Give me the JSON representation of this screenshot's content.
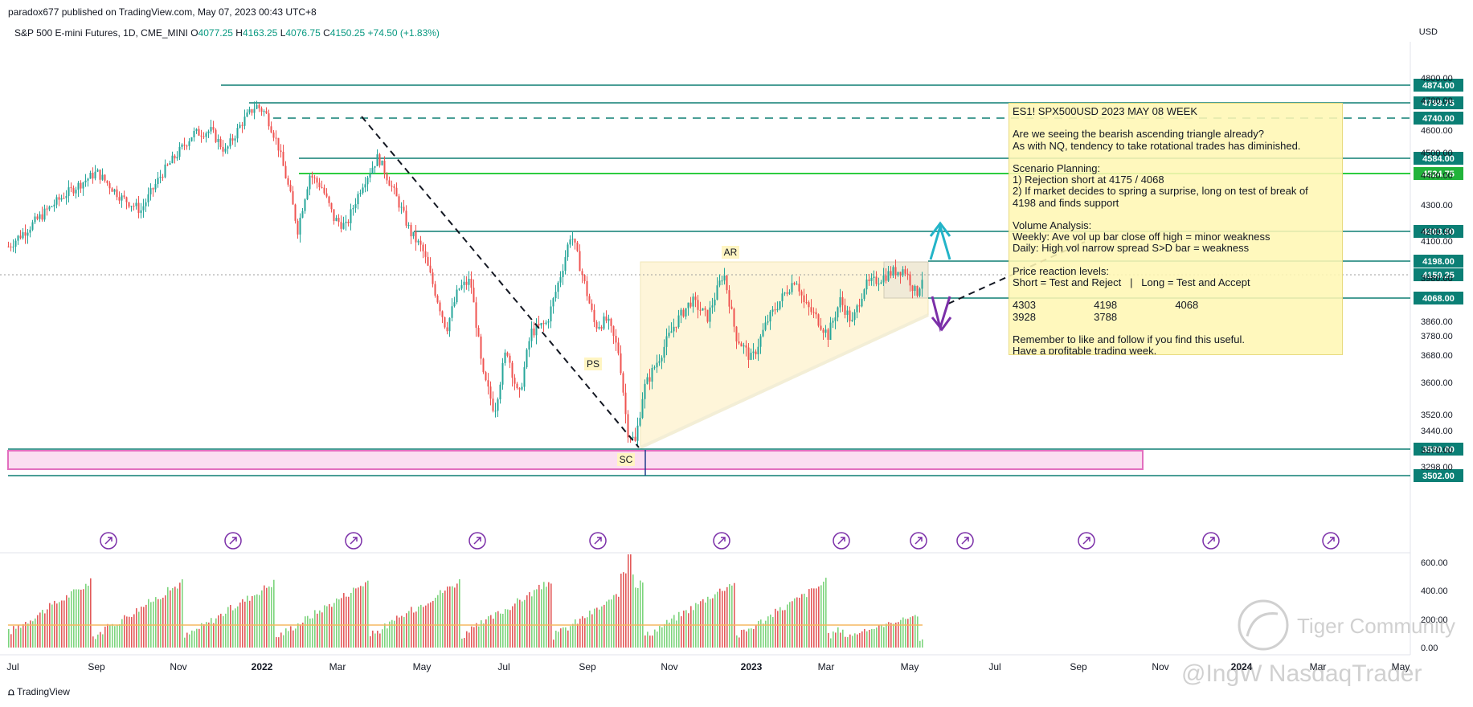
{
  "publisher": "paradox677 published on TradingView.com, May 07, 2023 00:43 UTC+8",
  "legend": {
    "symbol": "S&P 500 E-mini Futures, 1D, CME_MINI",
    "o_label": "O",
    "o": "4077.25",
    "h_label": "H",
    "h": "4163.25",
    "l_label": "L",
    "l": "4076.75",
    "c_label": "C",
    "c": "4150.25",
    "change": "+74.50 (+1.83%)"
  },
  "currency": "USD",
  "footer_logo": "TradingView",
  "watermark_main": "Tiger Community",
  "watermark_sub": "@IngW NasdaqTrader",
  "colors": {
    "up": "#26a69a",
    "down": "#ef5350",
    "level": "#0f7f74",
    "green_level": "#2ecc40",
    "pink_zone": "#f8c8e8",
    "tag_bg": "#0b7f75",
    "arrow_up": "#23b4c8",
    "arrow_down": "#7b2fa8",
    "triangle_fill": "#fdf2cc"
  },
  "notes": {
    "title": "ES1! SPX500USD 2023 MAY 08 WEEK",
    "lines": [
      "",
      "Are we seeing the bearish ascending triangle already?",
      "As with NQ, tendency to take rotational trades has diminished.",
      "",
      "Scenario Planning:",
      "1) Rejection short at 4175 / 4068",
      "2) If market decides to spring a surprise, long on test of break of",
      "4198 and finds support",
      "",
      "Volume Analysis:",
      "Weekly: Ave vol up bar close off high = minor weakness",
      "Daily: High vol narrow spread S>D bar = weakness",
      "",
      "Price reaction levels:",
      "Short = Test and Reject   |   Long = Test and Accept",
      "",
      "4303                    4198                    4068",
      "3928                    3788",
      "",
      "Remember to like and follow if you find this useful.",
      "Have a profitable trading week."
    ]
  },
  "chart_data": {
    "type": "candlestick",
    "title": "S&P 500 E-mini Futures, 1D, CME_MINI",
    "price_axis_ticks": [
      "4800.00",
      "4700.00",
      "4600.00",
      "4500.00",
      "4400.00",
      "4300.00",
      "4200.00",
      "4100.00",
      "3980.00",
      "3860.00",
      "3780.00",
      "3680.00",
      "3600.00",
      "3520.00",
      "3440.00",
      "3370.00",
      "3298.00"
    ],
    "volume_axis_ticks": [
      "600.00",
      "400.00",
      "200.00",
      "0.00"
    ],
    "x_ticks": [
      "Jul",
      "Sep",
      "Nov",
      "2022",
      "Mar",
      "May",
      "Jul",
      "Sep",
      "Nov",
      "2023",
      "Mar",
      "May",
      "Jul",
      "Sep",
      "Nov",
      "2024",
      "Mar",
      "May"
    ],
    "levels": [
      {
        "value": "4874.00",
        "style": "solid"
      },
      {
        "value": "4799.75",
        "style": "solid"
      },
      {
        "value": "4740.00",
        "style": "dashed"
      },
      {
        "value": "4584.00",
        "style": "solid"
      },
      {
        "value": "4524.75",
        "style": "green"
      },
      {
        "value": "4303.50",
        "style": "solid"
      },
      {
        "value": "4198.00",
        "style": "solid"
      },
      {
        "value": "4150.25",
        "style": "current"
      },
      {
        "value": "4068.00",
        "style": "solid"
      },
      {
        "value": "3580.00",
        "style": "solid"
      },
      {
        "value": "3502.00",
        "style": "solid"
      }
    ],
    "annotations": [
      "PS",
      "SC",
      "AR"
    ],
    "last_close": 4150.25
  }
}
